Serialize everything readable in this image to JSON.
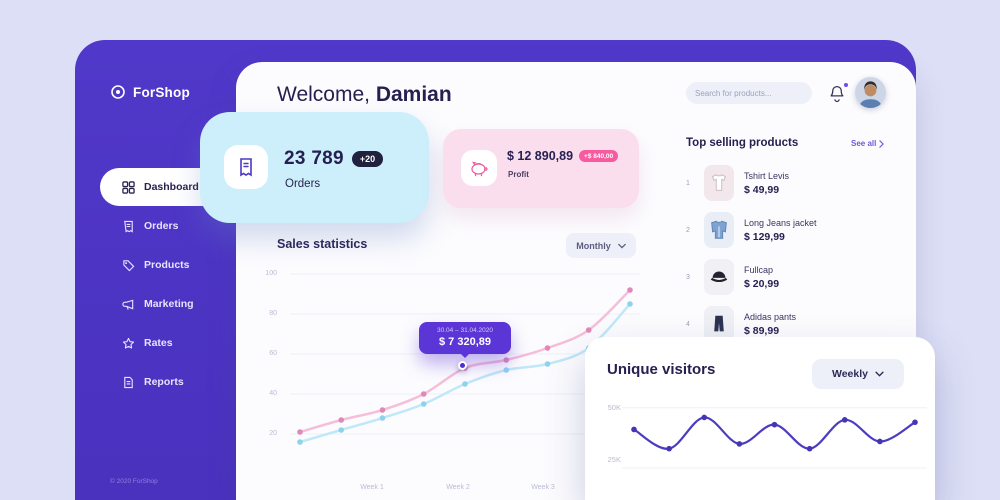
{
  "brand": {
    "name": "ForShop"
  },
  "sidebar": {
    "items": [
      {
        "label": "Dashboard"
      },
      {
        "label": "Orders"
      },
      {
        "label": "Products"
      },
      {
        "label": "Marketing"
      },
      {
        "label": "Rates"
      },
      {
        "label": "Reports"
      }
    ],
    "copyright": "© 2020 ForShop"
  },
  "header": {
    "welcome_prefix": "Welcome,",
    "user_name": "Damian",
    "search_placeholder": "Search for products..."
  },
  "stats": {
    "orders": {
      "value": "23 789",
      "badge": "+20",
      "label": "Orders"
    },
    "profit": {
      "value": "$ 12 890,89",
      "badge": "+$ 840,00",
      "label": "Profit"
    }
  },
  "sales": {
    "title": "Sales statistics",
    "period": "Monthly",
    "tooltip": {
      "range": "30.04 – 31.04.2020",
      "value": "$ 7 320,89"
    },
    "y_ticks": [
      "100",
      "80",
      "60",
      "40",
      "20"
    ],
    "x_ticks": [
      "Week 1",
      "Week 2",
      "Week 3"
    ],
    "chart": {
      "y_min": 6,
      "y_max": 100,
      "pad_x": 10,
      "pad_y": 6,
      "grid_values": [
        100,
        80,
        60,
        40,
        20
      ],
      "series": [
        {
          "name": "orders",
          "color": "#bfe8f8",
          "stroke_width": 2.5,
          "dot_color": "#8fd2ef",
          "values": [
            16,
            22,
            28,
            35,
            45,
            52,
            55,
            63,
            85
          ]
        },
        {
          "name": "profit",
          "color": "#f6bed8",
          "stroke_width": 2.5,
          "dot_color": "#e089b8",
          "values": [
            21,
            27,
            32,
            40,
            53,
            57,
            63,
            72,
            92
          ]
        }
      ]
    }
  },
  "top_products": {
    "title": "Top selling products",
    "see_all": "See all",
    "items": [
      {
        "rank": "1",
        "name": "Tshirt Levis",
        "price": "$ 49,99"
      },
      {
        "rank": "2",
        "name": "Long Jeans jacket",
        "price": "$ 129,99"
      },
      {
        "rank": "3",
        "name": "Fullcap",
        "price": "$ 20,99"
      },
      {
        "rank": "4",
        "name": "Adidas pants",
        "price": "$ 89,99"
      }
    ]
  },
  "visitors": {
    "title": "Unique visitors",
    "period": "Weekly",
    "y_ticks": [
      "50K",
      "25K"
    ],
    "chart": {
      "y_min": 15,
      "y_max": 52,
      "pad_x": 12,
      "pad_y": 8,
      "grid_values": [
        50,
        25
      ],
      "series": [
        {
          "name": "visitors",
          "color": "#4c3cc0",
          "stroke_width": 2.2,
          "dot_color": "#4335b5",
          "values": [
            41,
            33,
            46,
            35,
            43,
            33,
            45,
            36,
            44
          ]
        }
      ]
    }
  }
}
